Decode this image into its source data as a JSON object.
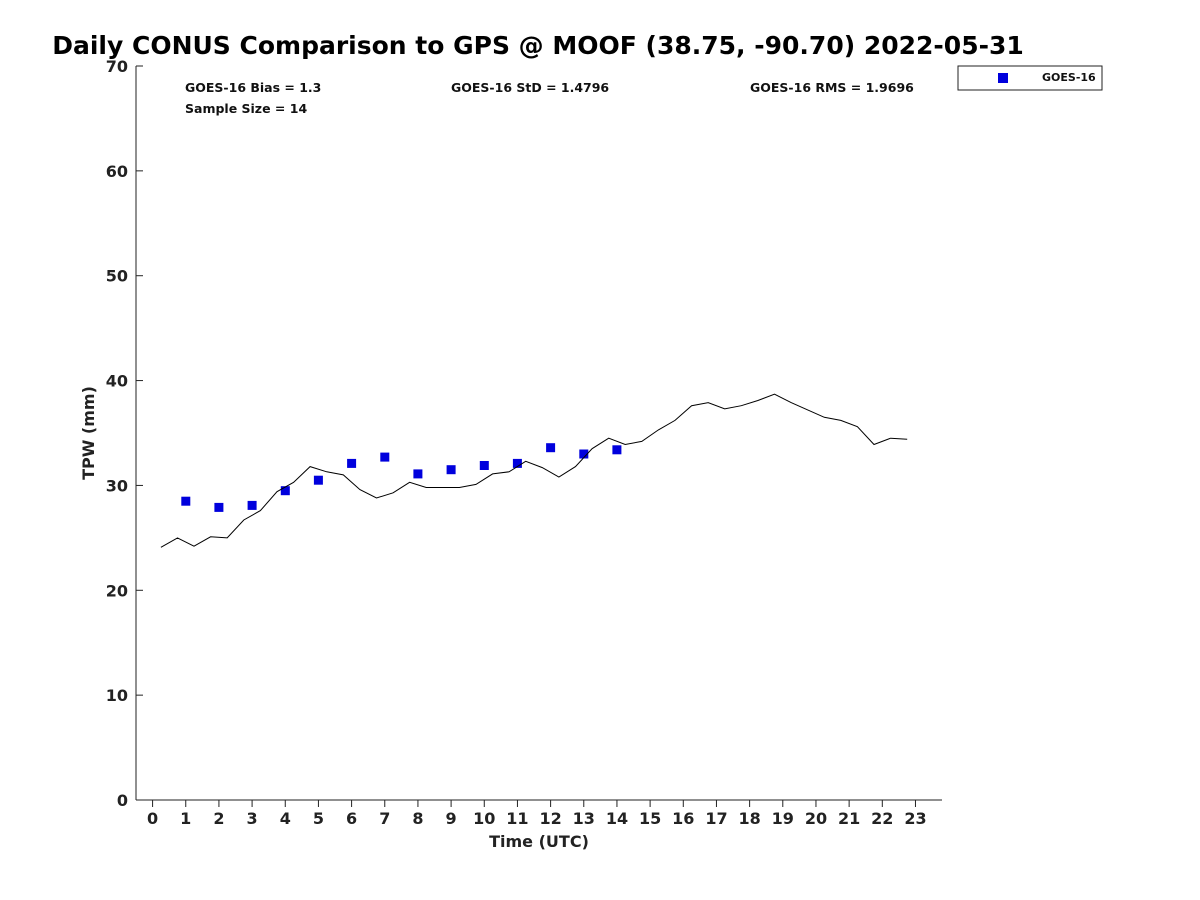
{
  "chart_data": {
    "type": "scatter",
    "title": "Daily CONUS Comparison to GPS @ MOOF (38.75, -90.70) 2022-05-31",
    "xlabel": "Time (UTC)",
    "ylabel": "TPW (mm)",
    "xlim": [
      -0.5,
      23.8
    ],
    "ylim": [
      0,
      70
    ],
    "x_ticks": [
      "0",
      "1",
      "2",
      "3",
      "4",
      "5",
      "6",
      "7",
      "8",
      "9",
      "10",
      "11",
      "12",
      "13",
      "14",
      "15",
      "16",
      "17",
      "18",
      "19",
      "20",
      "21",
      "22",
      "23"
    ],
    "y_ticks": [
      "0",
      "10",
      "20",
      "30",
      "40",
      "50",
      "60",
      "70"
    ],
    "grid": false,
    "legend_position": "top-right outside",
    "stats": {
      "bias": "GOES-16 Bias = 1.3",
      "std": "GOES-16 StD = 1.4796",
      "rms": "GOES-16 RMS = 1.9696",
      "sample": "Sample Size = 14"
    },
    "series": [
      {
        "name": "GOES-16",
        "kind": "scatter",
        "color": "#0000dd",
        "x": [
          1,
          2,
          3,
          4,
          5,
          6,
          7,
          8,
          9,
          10,
          11,
          12,
          13,
          14
        ],
        "y": [
          28.5,
          27.9,
          28.1,
          29.5,
          30.5,
          32.1,
          32.7,
          31.1,
          31.5,
          31.9,
          32.1,
          33.6,
          33.0,
          33.4
        ]
      },
      {
        "kind": "line",
        "color": "#000000",
        "x": [
          0.25,
          0.75,
          1.25,
          1.75,
          2.25,
          2.75,
          3.25,
          3.75,
          4.25,
          4.75,
          5.25,
          5.75,
          6.25,
          6.75,
          7.25,
          7.75,
          8.25,
          8.75,
          9.25,
          9.75,
          10.25,
          10.75,
          11.25,
          11.75,
          12.25,
          12.75,
          13.25,
          13.75,
          14.25,
          14.75,
          15.25,
          15.75,
          16.25,
          16.75,
          17.25,
          17.75,
          18.25,
          18.75,
          19.25,
          19.75,
          20.25,
          20.75,
          21.25,
          21.75,
          22.25,
          22.75
        ],
        "y": [
          24.1,
          25.0,
          24.2,
          25.1,
          25.0,
          26.7,
          27.6,
          29.4,
          30.3,
          31.8,
          31.3,
          31.0,
          29.6,
          28.8,
          29.3,
          30.3,
          29.8,
          29.8,
          29.8,
          30.1,
          31.1,
          31.3,
          32.3,
          31.7,
          30.8,
          31.8,
          33.5,
          34.5,
          33.9,
          34.2,
          35.3,
          36.2,
          37.6,
          37.9,
          37.3,
          37.6,
          38.1,
          38.7,
          37.9,
          37.2,
          36.5,
          36.2,
          35.6,
          33.9,
          34.5,
          34.4
        ]
      }
    ]
  }
}
